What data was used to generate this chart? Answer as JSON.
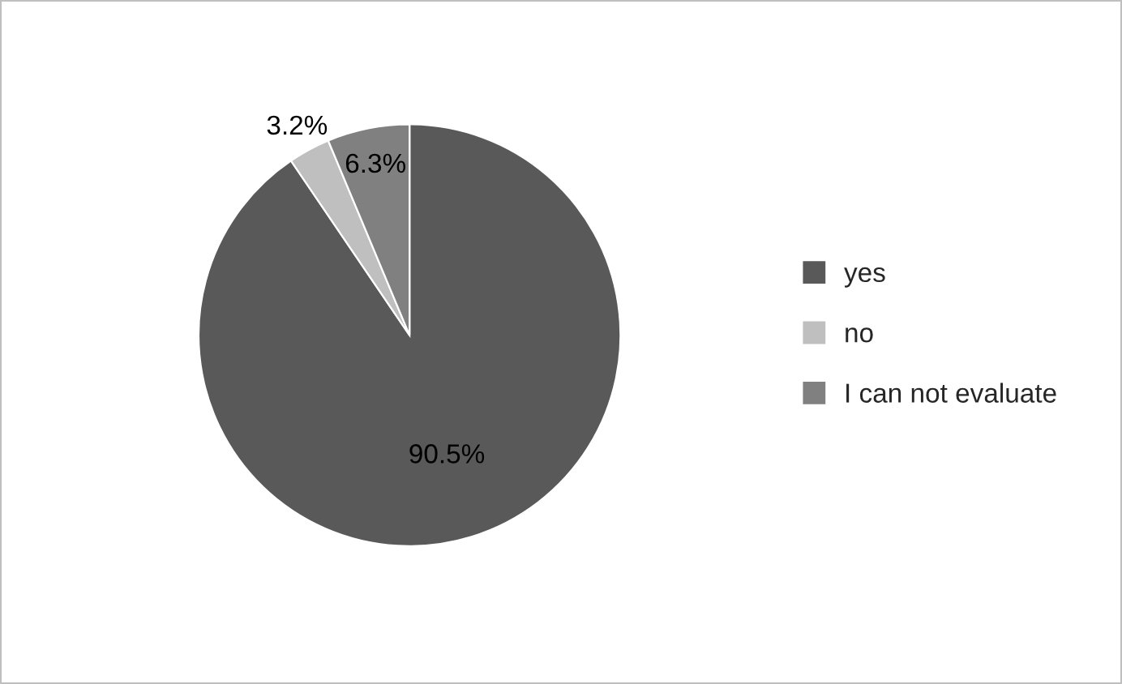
{
  "chart_data": {
    "type": "pie",
    "categories": [
      "yes",
      "no",
      "I can not evaluate"
    ],
    "values": [
      90.5,
      3.2,
      6.3
    ],
    "colors": [
      "#595959",
      "#bfbfbf",
      "#808080"
    ],
    "value_labels": [
      "90.5%",
      "3.2%",
      "6.3%"
    ],
    "legend": "right"
  }
}
